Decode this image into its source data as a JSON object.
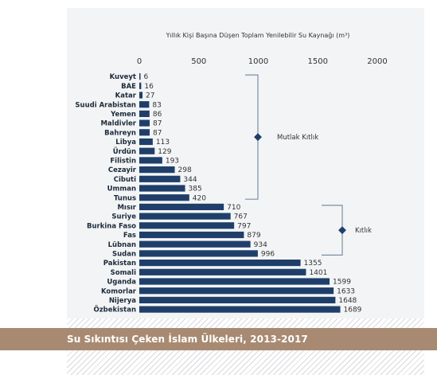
{
  "chart_data": {
    "type": "bar",
    "orientation": "horizontal",
    "title": "Yıllık Kişi Başına Düşen Toplam Yenilebilir Su Kaynağı (m³)",
    "xlim": [
      0,
      2000
    ],
    "xticks": [
      "0",
      "500",
      "1000",
      "1500",
      "2000"
    ],
    "xtick_values": [
      0,
      500,
      1000,
      1500,
      2000
    ],
    "categories": [
      "Kuveyt",
      "BAE",
      "Katar",
      "Suudi Arabistan",
      "Yemen",
      "Maldivler",
      "Bahreyn",
      "Libya",
      "Ürdün",
      "Filistin",
      "Cezayir",
      "Cibuti",
      "Umman",
      "Tunus",
      "Mısır",
      "Suriye",
      "Burkina Faso",
      "Fas",
      "Lübnan",
      "Sudan",
      "Pakistan",
      "Somali",
      "Uganda",
      "Komorlar",
      "Nijerya",
      "Özbekistan"
    ],
    "values": [
      6,
      16,
      27,
      83,
      86,
      87,
      87,
      113,
      129,
      193,
      298,
      344,
      385,
      420,
      710,
      767,
      797,
      879,
      934,
      996,
      1355,
      1401,
      1599,
      1633,
      1648,
      1689
    ],
    "value_labels": [
      "6",
      "16",
      "27",
      "83",
      "86",
      "87",
      "87",
      "113",
      "129",
      "193",
      "298",
      "344",
      "385",
      "420",
      "710",
      "767",
      "797",
      "879",
      "934",
      "996",
      "1355",
      "1401",
      "1599",
      "1633",
      "1648",
      "1689"
    ],
    "bar_color": "#1f3f6a",
    "annotations": [
      {
        "label": "Mutlak Kıtlık",
        "from_category": "Kuveyt",
        "to_category": "Tunus",
        "threshold": 1000
      },
      {
        "label": "Kıtlık",
        "from_category": "Mısır",
        "to_category": "Sudan",
        "threshold": 1700
      }
    ],
    "annotation_color": "#1f3f6a",
    "grid": false
  },
  "caption": "Su Sıkıntısı Çeken İslam Ülkeleri, 2013-2017",
  "colors": {
    "caption_bar": "#a88a72",
    "panel_background": "#f3f4f5",
    "bracket": "#7a8fa6"
  }
}
